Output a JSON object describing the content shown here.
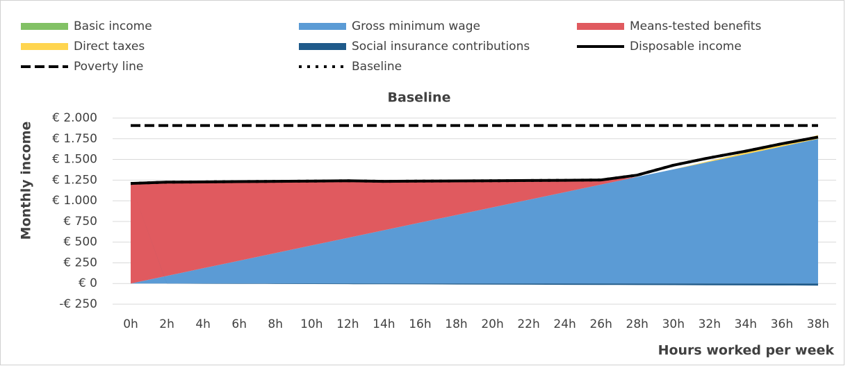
{
  "chart_data": {
    "type": "stacked-area",
    "title": "Baseline",
    "x_label": "Hours worked per week",
    "y_label": "Monthly income",
    "categories": [
      "0h",
      "2h",
      "4h",
      "6h",
      "8h",
      "10h",
      "12h",
      "14h",
      "16h",
      "18h",
      "20h",
      "22h",
      "24h",
      "26h",
      "28h",
      "30h",
      "32h",
      "34h",
      "36h",
      "38h"
    ],
    "ylim": [
      -250,
      2000
    ],
    "yticks": [
      {
        "value": -250,
        "label": "-€ 250"
      },
      {
        "value": 0,
        "label": "€ 0"
      },
      {
        "value": 250,
        "label": "€ 250"
      },
      {
        "value": 500,
        "label": "€ 500"
      },
      {
        "value": 750,
        "label": "€ 750"
      },
      {
        "value": 1000,
        "label": "€ 1.000"
      },
      {
        "value": 1250,
        "label": "€ 1.250"
      },
      {
        "value": 1500,
        "label": "€ 1.500"
      },
      {
        "value": 1750,
        "label": "€ 1.750"
      },
      {
        "value": 2000,
        "label": "€ 2.000"
      }
    ],
    "grid": true,
    "series": [
      {
        "name": "Basic income",
        "color": "#82c165",
        "kind": "area",
        "values": [
          0,
          0,
          0,
          0,
          0,
          0,
          0,
          0,
          0,
          0,
          0,
          0,
          0,
          0,
          0,
          0,
          0,
          0,
          0,
          0
        ]
      },
      {
        "name": "Gross minimum wage",
        "color": "#5b9bd5",
        "kind": "area",
        "values": [
          0,
          92,
          184,
          276,
          368,
          460,
          552,
          644,
          736,
          828,
          920,
          1012,
          1104,
          1196,
          1288,
          1380,
          1472,
          1564,
          1656,
          1748
        ]
      },
      {
        "name": "Means-tested benefits",
        "color": "#e05a5f",
        "kind": "area",
        "values": [
          1200,
          1123,
          1036,
          949,
          860,
          770,
          683,
          584,
          494,
          404,
          315,
          226,
          136,
          49,
          0,
          0,
          0,
          0,
          0,
          0
        ]
      },
      {
        "name": "Direct taxes",
        "color": "#ffd54f",
        "kind": "area",
        "values": [
          0,
          0,
          0,
          0,
          0,
          0,
          0,
          0,
          0,
          0,
          0,
          0,
          0,
          0,
          0,
          0,
          10,
          20,
          30,
          45
        ]
      },
      {
        "name": "Social insurance contributions",
        "color": "#1f5a8a",
        "kind": "area",
        "values": [
          0,
          -1,
          -3,
          -4,
          -5,
          -7,
          -8,
          -9,
          -10,
          -12,
          -13,
          -14,
          -16,
          -17,
          -18,
          -19,
          -21,
          -22,
          -23,
          -25
        ]
      },
      {
        "name": "Disposable income",
        "color": "#000000",
        "kind": "line",
        "dash": "solid",
        "values": [
          1210,
          1225,
          1228,
          1232,
          1235,
          1238,
          1242,
          1235,
          1238,
          1240,
          1242,
          1245,
          1248,
          1252,
          1310,
          1430,
          1520,
          1600,
          1690,
          1770
        ]
      },
      {
        "name": "Poverty line",
        "color": "#000000",
        "kind": "line",
        "dash": "dashed",
        "values": [
          1910,
          1910,
          1910,
          1910,
          1910,
          1910,
          1910,
          1910,
          1910,
          1910,
          1910,
          1910,
          1910,
          1910,
          1910,
          1910,
          1910,
          1910,
          1910,
          1910
        ]
      },
      {
        "name": "Baseline",
        "color": "#000000",
        "kind": "line",
        "dash": "dotted",
        "values": [
          1210,
          1225,
          1228,
          1232,
          1235,
          1238,
          1242,
          1235,
          1238,
          1240,
          1242,
          1245,
          1248,
          1252,
          1310,
          1430,
          1520,
          1600,
          1690,
          1770
        ]
      }
    ]
  }
}
